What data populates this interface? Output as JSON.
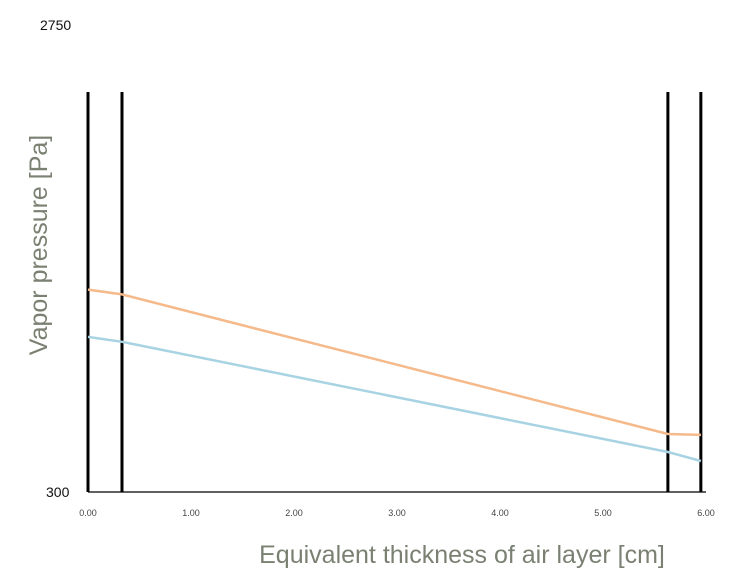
{
  "chart_data": {
    "type": "line",
    "title": "",
    "xlabel": "Equivalent thickness of air layer [cm]",
    "ylabel": "Vapor pressure [Pa]",
    "xlim": [
      0.0,
      6.0
    ],
    "ylim": [
      300,
      2750
    ],
    "x_ticks": [
      0.0,
      1.0,
      2.0,
      3.0,
      4.0,
      5.0,
      6.0
    ],
    "x_tick_labels": [
      "0.00",
      "1.00",
      "2.00",
      "3.00",
      "4.00",
      "5.00",
      "6.00"
    ],
    "y_tick_labels": [
      "300",
      "2750"
    ],
    "layer_boundaries": [
      0.0,
      0.33,
      5.63,
      5.95
    ],
    "grid": false,
    "series": [
      {
        "color": "#f5b98a",
        "x": [
          0.0,
          0.33,
          5.63,
          5.95
        ],
        "y": [
          1540,
          1510,
          655,
          650
        ]
      },
      {
        "color": "#a8d3e3",
        "x": [
          0.0,
          0.33,
          5.63,
          5.95
        ],
        "y": [
          1250,
          1220,
          545,
          490
        ]
      }
    ]
  }
}
